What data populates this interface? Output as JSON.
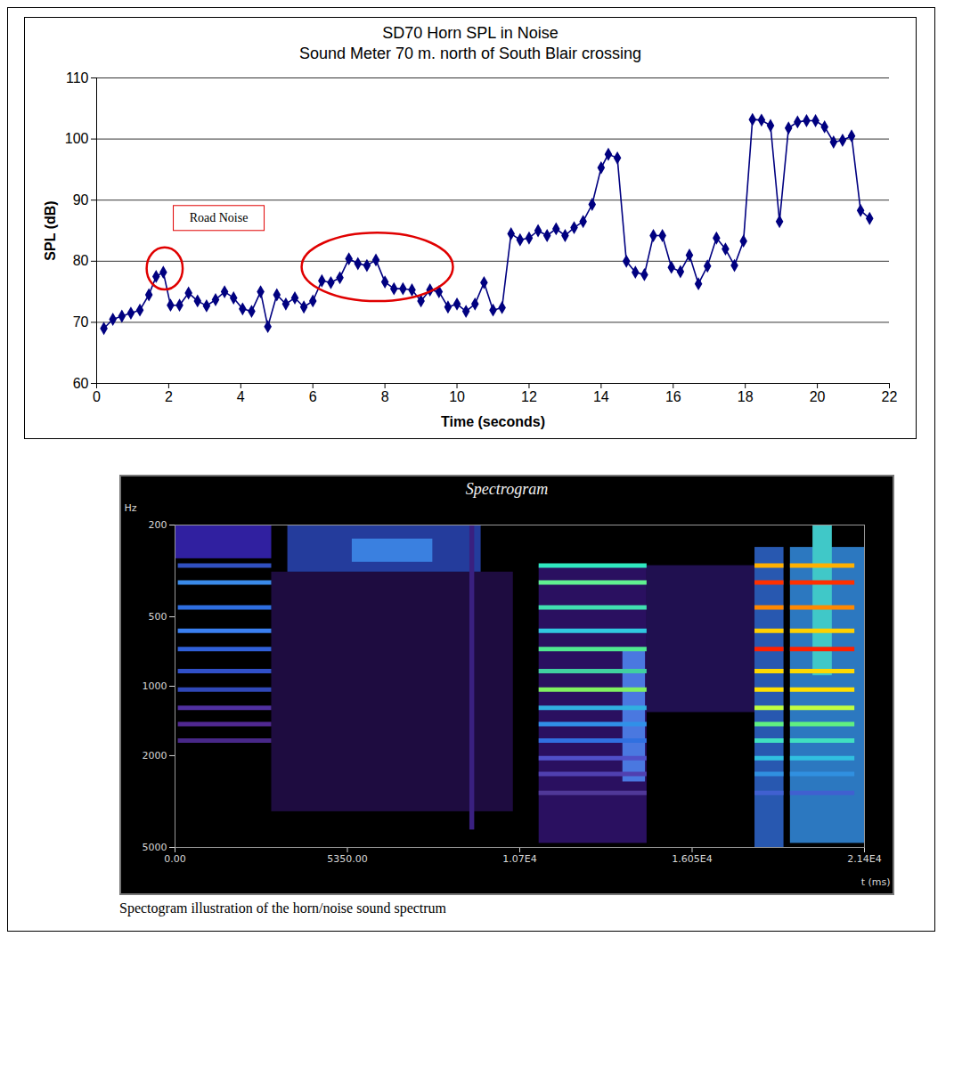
{
  "chart_data": [
    {
      "type": "line",
      "title": "SD70 Horn SPL in Noise",
      "subtitle": "Sound Meter 70 m. north of South Blair crossing",
      "x_label": "Time (seconds)",
      "y_label": "SPL (dB)",
      "x": [
        0.2,
        0.45,
        0.7,
        0.95,
        1.2,
        1.45,
        1.65,
        1.85,
        2.05,
        2.3,
        2.55,
        2.8,
        3.05,
        3.3,
        3.55,
        3.8,
        4.05,
        4.3,
        4.55,
        4.75,
        5.0,
        5.25,
        5.5,
        5.75,
        6.0,
        6.25,
        6.5,
        6.75,
        7.0,
        7.25,
        7.5,
        7.75,
        8.0,
        8.25,
        8.5,
        8.75,
        9.0,
        9.25,
        9.5,
        9.75,
        10.0,
        10.25,
        10.5,
        10.75,
        11.0,
        11.25,
        11.5,
        11.75,
        12.0,
        12.25,
        12.5,
        12.75,
        13.0,
        13.25,
        13.5,
        13.75,
        14.0,
        14.2,
        14.45,
        14.7,
        14.95,
        15.2,
        15.45,
        15.7,
        15.95,
        16.2,
        16.45,
        16.7,
        16.95,
        17.2,
        17.45,
        17.7,
        17.95,
        18.2,
        18.45,
        18.7,
        18.95,
        19.2,
        19.45,
        19.7,
        19.95,
        20.2,
        20.45,
        20.7,
        20.95,
        21.2,
        21.45
      ],
      "values": [
        69,
        70.5,
        71,
        71.5,
        72,
        74.5,
        77.5,
        78.2,
        72.8,
        72.8,
        74.8,
        73.5,
        72.7,
        73.7,
        75,
        74,
        72.2,
        71.8,
        75,
        69.3,
        74.5,
        73,
        74,
        72.5,
        73.5,
        76.8,
        76.5,
        77.3,
        80.4,
        79.6,
        79.3,
        80.2,
        76.6,
        75.5,
        75.5,
        75.3,
        73.5,
        75.3,
        75,
        72.5,
        73,
        71.8,
        73,
        76.5,
        72,
        72.4,
        84.5,
        83.5,
        83.8,
        85,
        84.2,
        85.3,
        84.2,
        85.5,
        86.5,
        89.3,
        95.3,
        97.5,
        96.9,
        80,
        78.2,
        77.8,
        84.2,
        84.2,
        79,
        78.3,
        81,
        76.3,
        79.2,
        83.8,
        82,
        79.3,
        83.3,
        103.2,
        103.1,
        102.2,
        86.5,
        101.8,
        102.8,
        103,
        103,
        102,
        99.5,
        99.8,
        100.5,
        88.3,
        87
      ],
      "color": "#000080",
      "marker": "diamond",
      "xlim": [
        0,
        22
      ],
      "xticks": [
        0,
        2,
        4,
        6,
        8,
        10,
        12,
        14,
        16,
        18,
        20,
        22
      ],
      "ylim": [
        60,
        110
      ],
      "yticks": [
        60,
        70,
        80,
        90,
        100,
        110
      ],
      "grid": true,
      "annotations": [
        {
          "text": "Road Noise",
          "x": 3.4,
          "y": 87
        }
      ],
      "highlights": [
        {
          "shape": "ellipse",
          "x": [
            1.4,
            2.4
          ],
          "y": [
            75.3,
            82.2
          ],
          "color": "#e00000"
        },
        {
          "shape": "ellipse",
          "x": [
            5.7,
            9.9
          ],
          "y": [
            73.4,
            84.6
          ],
          "color": "#e00000"
        }
      ]
    },
    {
      "type": "spectrogram",
      "title": "Spectrogram",
      "caption": "Spectogram illustration of the horn/noise sound spectrum",
      "x_label": "t (ms)",
      "y_label": "Hz",
      "log": "y",
      "xlim": [
        0,
        21400
      ],
      "xticks": [
        {
          "value": 0,
          "label": "0.00"
        },
        {
          "value": 5350,
          "label": "5350.00"
        },
        {
          "value": 10700,
          "label": "1.07E4"
        },
        {
          "value": 16050,
          "label": "1.605E4"
        },
        {
          "value": 21400,
          "label": "2.14E4"
        }
      ],
      "ylim": [
        200,
        5000
      ],
      "yticks": [
        200,
        500,
        1000,
        2000,
        5000
      ],
      "patches": [
        {
          "t": [
            0,
            3000
          ],
          "hz": [
            200,
            280
          ],
          "color": "#3020a0"
        },
        {
          "t": [
            3000,
            10500
          ],
          "hz": [
            320,
            3500
          ],
          "color": "#1e0c40"
        },
        {
          "t": [
            3500,
            9500
          ],
          "hz": [
            200,
            320
          ],
          "color": "#243c9c"
        },
        {
          "t": [
            5500,
            8000
          ],
          "hz": [
            230,
            290
          ],
          "color": "#3a80e0"
        },
        {
          "t": [
            9150,
            9300
          ],
          "hz": [
            200,
            4200
          ],
          "color": "#3a2080"
        },
        {
          "t": [
            11300,
            14650
          ],
          "hz": [
            300,
            4800
          ],
          "color": "#2a1060"
        },
        {
          "t": [
            13900,
            14600
          ],
          "hz": [
            700,
            2600
          ],
          "color": "#4a78e0"
        },
        {
          "t": [
            14650,
            18000
          ],
          "hz": [
            300,
            1300
          ],
          "color": "#201050"
        },
        {
          "t": [
            18000,
            18900
          ],
          "hz": [
            250,
            5200
          ],
          "color": "#2858b0"
        },
        {
          "t": [
            19100,
            21400
          ],
          "hz": [
            250,
            4800
          ],
          "color": "#2c78c0"
        },
        {
          "t": [
            19800,
            20400
          ],
          "hz": [
            200,
            900
          ],
          "color": "#40c8c8"
        }
      ],
      "bands": [
        {
          "t": [
            100,
            3000
          ],
          "hz": 300,
          "color": "#3050c0"
        },
        {
          "t": [
            100,
            3000
          ],
          "hz": 355,
          "color": "#3a8ae8"
        },
        {
          "t": [
            100,
            3000
          ],
          "hz": 455,
          "color": "#2e6ee0"
        },
        {
          "t": [
            100,
            3000
          ],
          "hz": 575,
          "color": "#3a7ff0"
        },
        {
          "t": [
            100,
            3000
          ],
          "hz": 690,
          "color": "#3060d8"
        },
        {
          "t": [
            100,
            3000
          ],
          "hz": 860,
          "color": "#3050c8"
        },
        {
          "t": [
            100,
            3000
          ],
          "hz": 1035,
          "color": "#3048b8"
        },
        {
          "t": [
            100,
            3000
          ],
          "hz": 1240,
          "color": "#5030a0"
        },
        {
          "t": [
            100,
            3000
          ],
          "hz": 1460,
          "color": "#502890"
        },
        {
          "t": [
            100,
            3000
          ],
          "hz": 1720,
          "color": "#482888"
        },
        {
          "t": [
            11300,
            14650
          ],
          "hz": 300,
          "color": "#30e8c0"
        },
        {
          "t": [
            11300,
            14650
          ],
          "hz": 355,
          "color": "#60f090"
        },
        {
          "t": [
            11300,
            14650
          ],
          "hz": 455,
          "color": "#40e0b0"
        },
        {
          "t": [
            11300,
            14650
          ],
          "hz": 575,
          "color": "#30c8e0"
        },
        {
          "t": [
            11300,
            14650
          ],
          "hz": 690,
          "color": "#50e890"
        },
        {
          "t": [
            11300,
            14650
          ],
          "hz": 860,
          "color": "#40d0a0"
        },
        {
          "t": [
            11300,
            14650
          ],
          "hz": 1035,
          "color": "#80f060"
        },
        {
          "t": [
            11300,
            14650
          ],
          "hz": 1240,
          "color": "#30b0e0"
        },
        {
          "t": [
            11300,
            14650
          ],
          "hz": 1460,
          "color": "#3090e8"
        },
        {
          "t": [
            11300,
            14650
          ],
          "hz": 1720,
          "color": "#3070e0"
        },
        {
          "t": [
            11300,
            14650
          ],
          "hz": 2050,
          "color": "#5050c8"
        },
        {
          "t": [
            11300,
            14650
          ],
          "hz": 2400,
          "color": "#5040b0"
        },
        {
          "t": [
            11300,
            14650
          ],
          "hz": 2900,
          "color": "#503898"
        },
        {
          "t": [
            18000,
            18900
          ],
          "hz": 300,
          "color": "#ffb000"
        },
        {
          "t": [
            18000,
            18900
          ],
          "hz": 355,
          "color": "#ff3000"
        },
        {
          "t": [
            18000,
            18900
          ],
          "hz": 455,
          "color": "#ff8800"
        },
        {
          "t": [
            18000,
            18900
          ],
          "hz": 575,
          "color": "#ffd000"
        },
        {
          "t": [
            18000,
            18900
          ],
          "hz": 690,
          "color": "#ff2000"
        },
        {
          "t": [
            18000,
            18900
          ],
          "hz": 860,
          "color": "#ffd800"
        },
        {
          "t": [
            18000,
            18900
          ],
          "hz": 1035,
          "color": "#ffe000"
        },
        {
          "t": [
            18000,
            18900
          ],
          "hz": 1240,
          "color": "#c0ff40"
        },
        {
          "t": [
            18000,
            18900
          ],
          "hz": 1460,
          "color": "#60f080"
        },
        {
          "t": [
            18000,
            18900
          ],
          "hz": 1720,
          "color": "#40e0c0"
        },
        {
          "t": [
            18000,
            18900
          ],
          "hz": 2050,
          "color": "#30c0e0"
        },
        {
          "t": [
            18000,
            18900
          ],
          "hz": 2400,
          "color": "#3090e0"
        },
        {
          "t": [
            18000,
            18900
          ],
          "hz": 2900,
          "color": "#4060d0"
        },
        {
          "t": [
            19100,
            21100
          ],
          "hz": 300,
          "color": "#ffb000"
        },
        {
          "t": [
            19100,
            21100
          ],
          "hz": 355,
          "color": "#ff3000"
        },
        {
          "t": [
            19100,
            21100
          ],
          "hz": 455,
          "color": "#ff8800"
        },
        {
          "t": [
            19100,
            21100
          ],
          "hz": 575,
          "color": "#ffd000"
        },
        {
          "t": [
            19100,
            21100
          ],
          "hz": 690,
          "color": "#ff2000"
        },
        {
          "t": [
            19100,
            21100
          ],
          "hz": 860,
          "color": "#ffd800"
        },
        {
          "t": [
            19100,
            21100
          ],
          "hz": 1035,
          "color": "#ffe000"
        },
        {
          "t": [
            19100,
            21100
          ],
          "hz": 1240,
          "color": "#c0ff40"
        },
        {
          "t": [
            19100,
            21100
          ],
          "hz": 1460,
          "color": "#60f080"
        },
        {
          "t": [
            19100,
            21100
          ],
          "hz": 1720,
          "color": "#40e0c0"
        },
        {
          "t": [
            19100,
            21100
          ],
          "hz": 2050,
          "color": "#30c0e0"
        },
        {
          "t": [
            19100,
            21100
          ],
          "hz": 2400,
          "color": "#3090e0"
        },
        {
          "t": [
            19100,
            21100
          ],
          "hz": 2900,
          "color": "#4060d0"
        }
      ]
    }
  ]
}
